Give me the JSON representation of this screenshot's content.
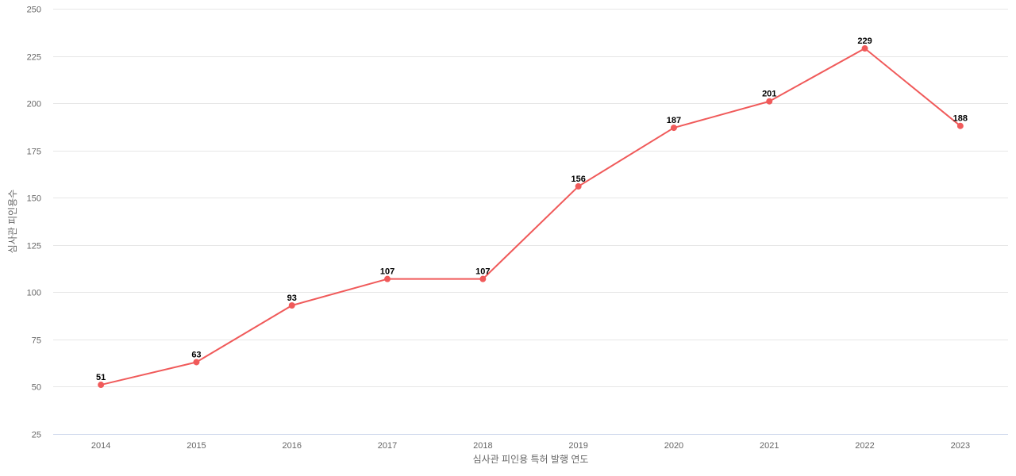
{
  "chart_data": {
    "type": "line",
    "categories": [
      "2014",
      "2015",
      "2016",
      "2017",
      "2018",
      "2019",
      "2020",
      "2021",
      "2022",
      "2023"
    ],
    "series": [
      {
        "values": [
          51,
          63,
          93,
          107,
          107,
          156,
          187,
          201,
          229,
          188
        ],
        "color": "#f05a5a"
      }
    ],
    "xlabel": "심사관 피인용 특허 발행 연도",
    "ylabel": "심사관 피인용수",
    "ylim": [
      25,
      250
    ],
    "yticks": [
      25,
      50,
      75,
      100,
      125,
      150,
      175,
      200,
      225,
      250
    ],
    "grid": true,
    "data_labels": true
  }
}
